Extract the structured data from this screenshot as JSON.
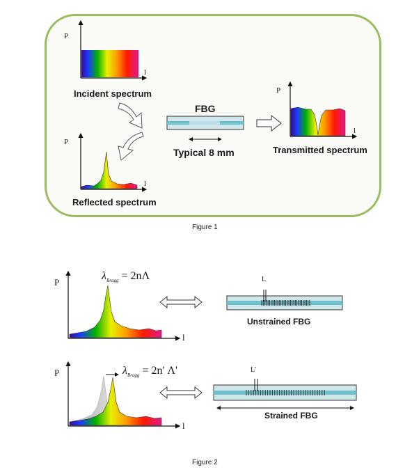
{
  "figure1": {
    "caption": "Figure 1",
    "axis_p": "P",
    "axis_l": "l",
    "incident_label": "Incident spectrum",
    "reflected_label": "Reflected spectrum",
    "fbg_label": "FBG",
    "length_label": "Typical 8 mm",
    "transmitted_label": "Transmitted spectrum"
  },
  "figure2": {
    "caption": "Figure 2",
    "axis_p": "P",
    "axis_l": "l",
    "eq1_lambda": "λ",
    "eq1_sub": "Bragg",
    "eq1_rhs": "= 2nΛ",
    "eq2_lambda": "λ",
    "eq2_sub": "Bragg",
    "eq2_rhs": "= 2n' Λ'",
    "pitch_label": "L",
    "pitch_label_strained": "L'",
    "unstrained_label": "Unstrained FBG",
    "strained_label": "Strained FBG"
  },
  "colors": {
    "panel_border": "#9dbb61",
    "fiber_cladding": "#cfe6ea",
    "fiber_core": "#6fc0cc"
  }
}
